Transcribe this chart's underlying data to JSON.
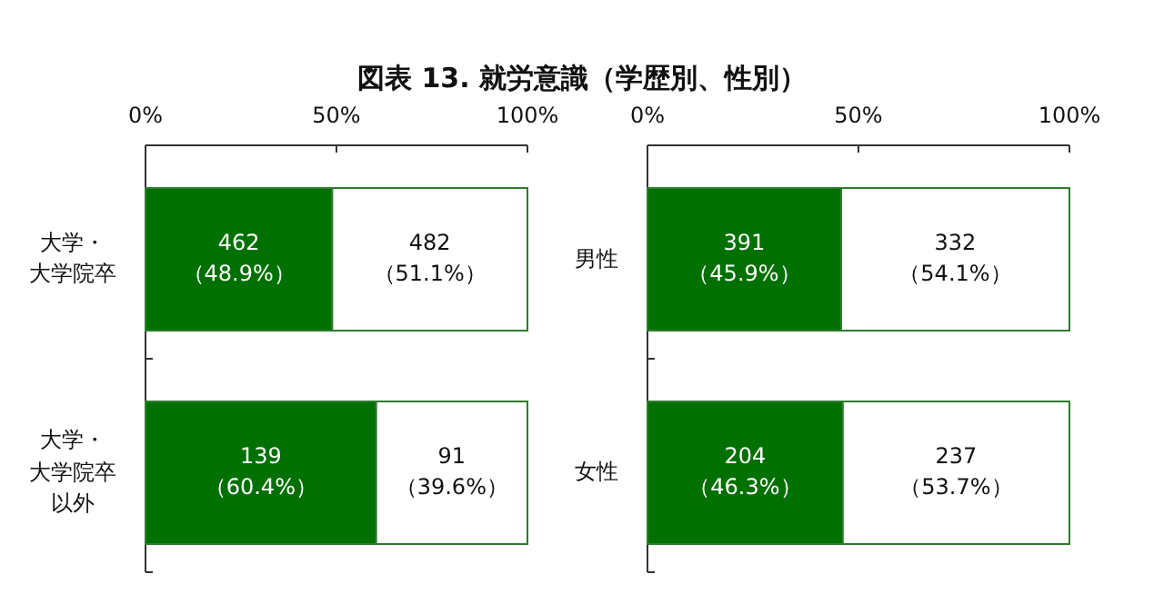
{
  "chart_data": [
    {
      "type": "bar",
      "title": "図表 13. 就労意識（学歴別、性別）",
      "orientation": "horizontal",
      "stacked": true,
      "categories": [
        "大学・大学院卒",
        "大学・大学院卒以外"
      ],
      "xlim": [
        0,
        100
      ],
      "xticks": [
        {
          "value": 0,
          "label": "0%"
        },
        {
          "value": 50,
          "label": "50%"
        },
        {
          "value": 100,
          "label": "100%"
        }
      ],
      "series": [
        {
          "color": "#007000",
          "values": [
            48.9,
            60.4
          ],
          "value_labels": [
            "462\n（48.9%）",
            "139\n（60.4%）"
          ]
        },
        {
          "color": "#ffffff",
          "values": [
            51.1,
            39.6
          ],
          "value_labels": [
            "482\n（51.1%）",
            "91\n（39.6%）"
          ]
        }
      ]
    },
    {
      "type": "bar",
      "orientation": "horizontal",
      "stacked": true,
      "categories": [
        "男性",
        "女性"
      ],
      "xlim": [
        0,
        100
      ],
      "xticks": [
        {
          "value": 0,
          "label": "0%"
        },
        {
          "value": 50,
          "label": "50%"
        },
        {
          "value": 100,
          "label": "100%"
        }
      ],
      "series": [
        {
          "color": "#007000",
          "values": [
            45.9,
            46.3
          ],
          "value_labels": [
            "391\n（45.9%）",
            "204\n（46.3%）"
          ]
        },
        {
          "color": "#ffffff",
          "values": [
            54.1,
            53.7
          ],
          "value_labels": [
            "332\n（54.1%）",
            "237\n（53.7%）"
          ]
        }
      ]
    }
  ]
}
